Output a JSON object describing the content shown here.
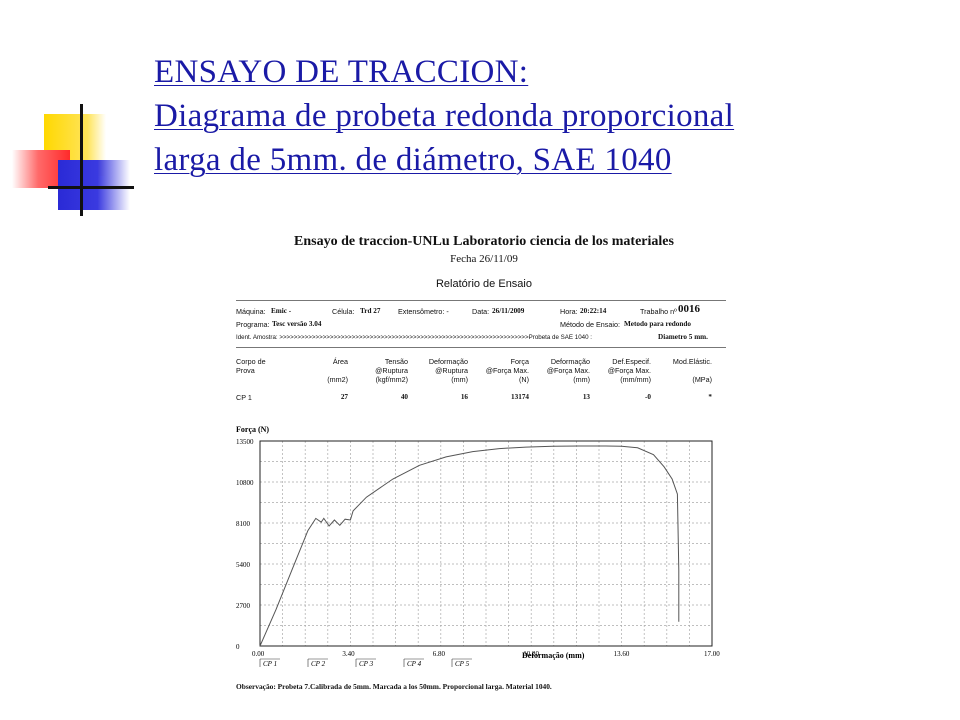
{
  "slide": {
    "title_lines": [
      "ENSAYO DE TRACCION:",
      "Diagrama de probeta redonda proporcional",
      "larga de 5mm. de diámetro, SAE 1040"
    ],
    "title_color": "#1a1aa6",
    "decoration_colors": {
      "yellow": "#ffd800",
      "red": "#ff3333",
      "blue": "#2a2ad6"
    }
  },
  "report": {
    "title": "Ensayo de traccion-UNLu Laboratorio ciencia de los materiales",
    "date": "Fecha 26/11/09",
    "subtitle": "Relatório de Ensaio",
    "info": {
      "maquina_label": "Máquina:",
      "maquina_value": "Emic -",
      "celula_label": "Célula:",
      "celula_value": "Trd 27",
      "extensometro": "Extensômetro: -",
      "data_label": "Data:",
      "data_value": "26/11/2009",
      "hora_label": "Hora:",
      "hora_value": "20:22:14",
      "trabalho_label": "Trabalho nº",
      "trabalho_value": "0016",
      "programa_label": "Programa:",
      "programa_value": "Tesc versão 3.04",
      "metodo_label": "Método de Ensaio:",
      "metodo_value": "Metodo para redondo",
      "ident_label": "Ident. Amostra: >>>>>>>>>>>>>>>>>>>>>>>>>>>>>>>>>>>>>>>>>>>>>>>>>>>>>>>>>>>>>>>>>>>>>Probeta de SAE 1040 :",
      "ident_value": "Diametro 5 mm."
    },
    "table": {
      "col1_header": [
        "Corpo de",
        "Prova"
      ],
      "headers": [
        [
          "Área",
          "",
          "(mm2)"
        ],
        [
          "Tensão",
          "@Ruptura",
          "(kgf/mm2)"
        ],
        [
          "Deformação",
          "@Ruptura",
          "(mm)"
        ],
        [
          "Força",
          "@Força Max.",
          "(N)"
        ],
        [
          "Deformação",
          "@Força Max.",
          "(mm)"
        ],
        [
          "Def.Especif.",
          "@Força Max.",
          "(mm/mm)"
        ],
        [
          "Mod.Elástic.",
          "",
          "(MPa)"
        ]
      ],
      "row": {
        "name": "CP 1",
        "values": [
          "27",
          "40",
          "16",
          "13174",
          "13",
          "-0",
          "*"
        ]
      }
    },
    "observacao": "Observação: Probeta 7.Calibrada de 5mm. Marcada a los 50mm. Proporcional larga. Material 1040."
  },
  "chart_data": {
    "type": "line",
    "ylabel": "Força (N)",
    "xlabel": "Deformação (mm)",
    "xlim": [
      0,
      17
    ],
    "ylim": [
      0,
      13500
    ],
    "x_ticks": [
      "0.00",
      "3.40",
      "6.80",
      "10.20",
      "13.60",
      "17.00"
    ],
    "y_ticks": [
      "0",
      "2700",
      "5400",
      "8100",
      "10800",
      "13500"
    ],
    "cp_labels": [
      "CP 1",
      "CP 2",
      "CP 3",
      "CP 4",
      "CP 5"
    ],
    "grid": true,
    "series": [
      {
        "x": [
          0.0,
          0.6,
          1.2,
          1.8,
          2.1,
          2.3,
          2.4,
          2.6,
          2.8,
          3.0,
          3.2,
          3.4,
          3.5,
          4.0,
          5.0,
          6.0,
          7.0,
          8.0,
          9.0,
          10.0,
          11.0,
          12.0,
          13.0,
          13.6,
          14.2,
          14.8,
          15.2,
          15.5,
          15.7,
          15.75,
          15.75
        ],
        "y": [
          0,
          2400,
          5000,
          7600,
          8400,
          8150,
          8400,
          7900,
          8300,
          7950,
          8350,
          8300,
          8900,
          9800,
          11000,
          11900,
          12450,
          12800,
          13000,
          13100,
          13150,
          13174,
          13174,
          13150,
          13050,
          12600,
          11800,
          11000,
          10000,
          5000,
          1600
        ]
      }
    ]
  }
}
